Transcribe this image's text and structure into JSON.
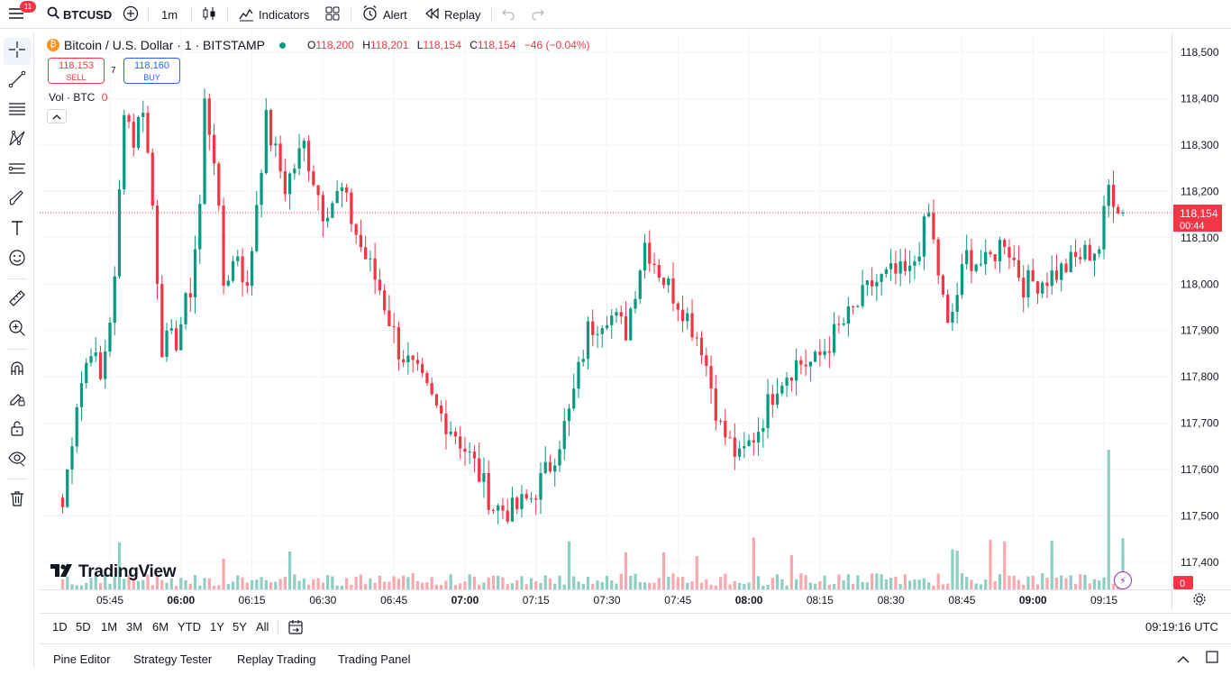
{
  "topbar": {
    "notification_count": "11",
    "symbol": "BTCUSD",
    "interval": "1m",
    "indicators_label": "Indicators",
    "alert_label": "Alert",
    "replay_label": "Replay"
  },
  "legend": {
    "title": "Bitcoin / U.S. Dollar · 1 · BITSTAMP",
    "o_label": "O",
    "o_value": "118,200",
    "h_label": "H",
    "h_value": "118,201",
    "l_label": "L",
    "l_value": "118,154",
    "c_label": "C",
    "c_value": "118,154",
    "change": "−46 (−0.04%)"
  },
  "trade": {
    "sell_price": "118,153",
    "sell_label": "SELL",
    "spread": "7",
    "buy_price": "118,160",
    "buy_label": "BUY"
  },
  "volume_legend": {
    "label": "Vol · BTC",
    "value": "0"
  },
  "watermark": "TradingView",
  "price_axis": {
    "ticks": [
      "118,500",
      "118,400",
      "118,300",
      "118,200",
      "118,100",
      "118,000",
      "117,900",
      "117,800",
      "117,700",
      "117,600",
      "117,500",
      "117,400"
    ],
    "last_price": "118,154",
    "countdown": "00:44",
    "volume_tag": "0"
  },
  "time_axis": {
    "ticks": [
      {
        "label": "05:45",
        "bold": false
      },
      {
        "label": "06:00",
        "bold": true
      },
      {
        "label": "06:15",
        "bold": false
      },
      {
        "label": "06:30",
        "bold": false
      },
      {
        "label": "06:45",
        "bold": false
      },
      {
        "label": "07:00",
        "bold": true
      },
      {
        "label": "07:15",
        "bold": false
      },
      {
        "label": "07:30",
        "bold": false
      },
      {
        "label": "07:45",
        "bold": false
      },
      {
        "label": "08:00",
        "bold": true
      },
      {
        "label": "08:15",
        "bold": false
      },
      {
        "label": "08:30",
        "bold": false
      },
      {
        "label": "08:45",
        "bold": false
      },
      {
        "label": "09:00",
        "bold": true
      },
      {
        "label": "09:15",
        "bold": false
      }
    ]
  },
  "ranges": [
    "1D",
    "5D",
    "1M",
    "3M",
    "6M",
    "YTD",
    "1Y",
    "5Y",
    "All"
  ],
  "clock": "09:19:16 UTC",
  "bottom_tabs": [
    "Pine Editor",
    "Strategy Tester",
    "Replay Trading",
    "Trading Panel"
  ],
  "colors": {
    "up": "#089981",
    "down": "#f23645",
    "up_vol": "#8fcfc3",
    "down_vol": "#f7a9b0",
    "accent": "#2962ff"
  },
  "chart_data": {
    "type": "candlestick",
    "symbol": "BTCUSD",
    "exchange": "BITSTAMP",
    "interval": "1m",
    "yaxis": {
      "min": 117350,
      "max": 118530,
      "unit": "USD"
    },
    "x_start": "05:35",
    "x_end": "09:19",
    "last_close": 118154,
    "anchors": [
      {
        "t": "05:35",
        "p": 117520
      },
      {
        "t": "05:38",
        "p": 117750
      },
      {
        "t": "05:41",
        "p": 117870
      },
      {
        "t": "05:43",
        "p": 117790
      },
      {
        "t": "05:46",
        "p": 118000
      },
      {
        "t": "05:48",
        "p": 118390
      },
      {
        "t": "05:50",
        "p": 118310
      },
      {
        "t": "05:52",
        "p": 118390
      },
      {
        "t": "05:54",
        "p": 118170
      },
      {
        "t": "05:56",
        "p": 117870
      },
      {
        "t": "05:59",
        "p": 117880
      },
      {
        "t": "06:02",
        "p": 117990
      },
      {
        "t": "06:04",
        "p": 118170
      },
      {
        "t": "06:05",
        "p": 118390
      },
      {
        "t": "06:07",
        "p": 118280
      },
      {
        "t": "06:09",
        "p": 118000
      },
      {
        "t": "06:12",
        "p": 118070
      },
      {
        "t": "06:14",
        "p": 117980
      },
      {
        "t": "06:16",
        "p": 118180
      },
      {
        "t": "06:18",
        "p": 118350
      },
      {
        "t": "06:22",
        "p": 118210
      },
      {
        "t": "06:26",
        "p": 118300
      },
      {
        "t": "06:30",
        "p": 118160
      },
      {
        "t": "06:34",
        "p": 118200
      },
      {
        "t": "06:38",
        "p": 118080
      },
      {
        "t": "06:42",
        "p": 117990
      },
      {
        "t": "06:46",
        "p": 117860
      },
      {
        "t": "06:50",
        "p": 117800
      },
      {
        "t": "06:54",
        "p": 117730
      },
      {
        "t": "06:58",
        "p": 117680
      },
      {
        "t": "07:02",
        "p": 117610
      },
      {
        "t": "07:06",
        "p": 117520
      },
      {
        "t": "07:10",
        "p": 117510
      },
      {
        "t": "07:14",
        "p": 117540
      },
      {
        "t": "07:18",
        "p": 117610
      },
      {
        "t": "07:22",
        "p": 117720
      },
      {
        "t": "07:26",
        "p": 117900
      },
      {
        "t": "07:30",
        "p": 117940
      },
      {
        "t": "07:34",
        "p": 117900
      },
      {
        "t": "07:38",
        "p": 118090
      },
      {
        "t": "07:42",
        "p": 118010
      },
      {
        "t": "07:46",
        "p": 117950
      },
      {
        "t": "07:50",
        "p": 117870
      },
      {
        "t": "07:54",
        "p": 117690
      },
      {
        "t": "07:58",
        "p": 117620
      },
      {
        "t": "08:02",
        "p": 117690
      },
      {
        "t": "08:06",
        "p": 117790
      },
      {
        "t": "08:10",
        "p": 117830
      },
      {
        "t": "08:14",
        "p": 117830
      },
      {
        "t": "08:18",
        "p": 117890
      },
      {
        "t": "08:22",
        "p": 117940
      },
      {
        "t": "08:26",
        "p": 118000
      },
      {
        "t": "08:30",
        "p": 118020
      },
      {
        "t": "08:34",
        "p": 118020
      },
      {
        "t": "08:38",
        "p": 118150
      },
      {
        "t": "08:42",
        "p": 117900
      },
      {
        "t": "08:46",
        "p": 118060
      },
      {
        "t": "08:50",
        "p": 118040
      },
      {
        "t": "08:54",
        "p": 118100
      },
      {
        "t": "08:58",
        "p": 118000
      },
      {
        "t": "09:02",
        "p": 118010
      },
      {
        "t": "09:06",
        "p": 118030
      },
      {
        "t": "09:10",
        "p": 118060
      },
      {
        "t": "09:14",
        "p": 118080
      },
      {
        "t": "09:16",
        "p": 118210
      },
      {
        "t": "09:19",
        "p": 118154
      }
    ]
  }
}
